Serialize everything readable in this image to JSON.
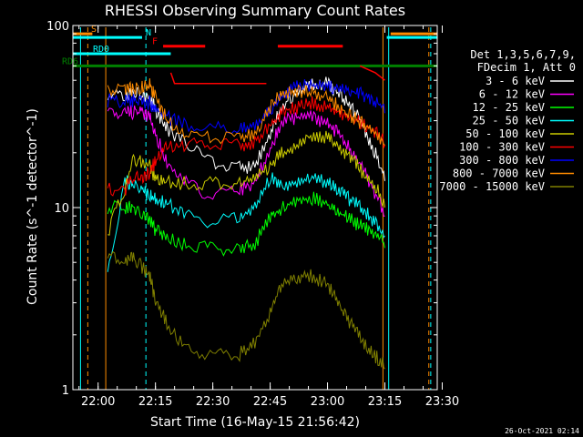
{
  "chart_data": {
    "type": "line",
    "title": "RHESSI Observing Summary Count Rates",
    "xlabel": "Start Time (16-May-15 21:56:42)",
    "ylabel": "Count Rate (s^-1 detector^-1)",
    "yscale": "log",
    "ylim": [
      1,
      100
    ],
    "xlim_minutes": [
      -3.3,
      92
    ],
    "x_ticks": [
      "22:00",
      "22:15",
      "22:30",
      "22:45",
      "23:00",
      "23:15",
      "23:30"
    ],
    "x_tick_minutes": [
      3.3,
      18.3,
      33.3,
      48.3,
      63.3,
      78.3,
      93.3
    ],
    "y_ticks": [
      "1",
      "10",
      "100"
    ],
    "y_tick_values": [
      1,
      10,
      100
    ],
    "legend_header": [
      "Det 1,3,5,6,7,9,",
      "FDecim 1, Att 0"
    ],
    "legend_position": "right",
    "grid": false,
    "timestamp": "26-Oct-2021 02:14",
    "flags": [
      {
        "label": "S",
        "color": "#ff8c00",
        "segments": [
          [
            -3.3,
            1.8
          ],
          [
            79.8,
            92
          ]
        ],
        "level": 90
      },
      {
        "label": "N",
        "color": "#00ffff",
        "segments": [
          [
            -3.3,
            14.8
          ],
          [
            78.8,
            92
          ]
        ],
        "level": 86
      },
      {
        "label": "F",
        "color": "#ff0000",
        "segments": [
          [
            20.3,
            31.3
          ],
          [
            50.3,
            67.3
          ]
        ],
        "level": 77
      },
      {
        "label": "RD0",
        "color": "#00ffff",
        "segments": [
          [
            -3.3,
            22.3
          ]
        ],
        "level": 70
      },
      {
        "label": "RD6",
        "color": "#008000",
        "segments": [
          [
            -3.3,
            92
          ]
        ],
        "level": 60
      }
    ],
    "vertical_markers": [
      {
        "color": "#ff8c00",
        "dashed": false,
        "minutes": [
          5.3,
          77.8
        ]
      },
      {
        "color": "#ff8c00",
        "dashed": true,
        "minutes": [
          0.6,
          89.8
        ]
      },
      {
        "color": "#00ffff",
        "dashed": false,
        "minutes": [
          -1.3,
          79.3
        ]
      },
      {
        "color": "#00ffff",
        "dashed": true,
        "minutes": [
          15.8,
          90.3
        ]
      }
    ],
    "x_minutes": [
      5.8,
      10.3,
      12.3,
      14.8,
      16.8,
      18.3,
      21.3,
      26.3,
      33.3,
      40.3,
      44.3,
      48.3,
      51.3,
      55.3,
      59.3,
      63.3,
      66.3,
      69.3,
      72.3,
      75.3,
      78.3
    ],
    "series": [
      {
        "name": "3 - 6 keV",
        "color": "#ffffff",
        "values": [
          40,
          40,
          40,
          40,
          38,
          33,
          26,
          21,
          17,
          16,
          16,
          24,
          34,
          42,
          45,
          46,
          40,
          34,
          28,
          20,
          14
        ]
      },
      {
        "name": "6 - 12 keV",
        "color": "#ff00ff",
        "values": [
          32,
          32,
          32,
          32,
          30,
          24,
          17,
          13,
          11,
          12,
          13,
          20,
          28,
          30,
          30,
          28,
          24,
          20,
          16,
          12,
          9
        ]
      },
      {
        "name": "12 - 25 keV",
        "color": "#00ff00",
        "values": [
          9.5,
          9.5,
          9.5,
          9,
          8,
          7.2,
          6.5,
          6,
          5.7,
          5.7,
          6,
          8.5,
          9.5,
          10.5,
          10.8,
          10,
          9,
          8.2,
          7.5,
          7,
          6
        ]
      },
      {
        "name": "25 - 50 keV",
        "color": "#00ffff",
        "values": [
          4,
          13,
          13,
          12,
          11,
          10.5,
          10,
          8.5,
          8,
          8.5,
          9.5,
          14,
          12.5,
          13,
          14,
          13,
          12,
          10.5,
          9.5,
          8,
          7
        ]
      },
      {
        "name": "50 - 100 keV",
        "color": "#cccc00",
        "values": [
          7,
          12,
          17,
          17,
          16,
          14,
          13,
          13,
          13,
          13,
          14,
          16,
          19,
          21,
          24,
          23,
          20,
          18,
          15,
          13,
          10
        ]
      },
      {
        "name": "100 - 300 keV",
        "color": "#ff0000",
        "values": [
          12,
          12,
          14,
          14,
          15,
          17,
          21,
          21,
          21,
          21,
          22,
          27,
          32,
          34,
          36,
          34,
          32,
          30,
          28,
          25,
          22
        ]
      },
      {
        "name": "300 - 800 keV",
        "color": "#0000ff",
        "values": [
          37,
          37,
          37,
          36,
          36,
          33,
          30,
          27,
          26,
          26,
          27,
          33,
          40,
          44,
          45,
          44,
          44,
          42,
          40,
          37,
          33
        ]
      },
      {
        "name": "800 - 7000 keV",
        "color": "#ff8c00",
        "values": [
          43,
          43,
          43,
          44,
          45,
          38,
          29,
          24,
          23,
          23,
          24,
          34,
          40,
          41,
          41,
          38,
          34,
          30,
          28,
          25,
          22
        ]
      },
      {
        "name": "7000 - 15000 keV",
        "color": "#808000",
        "values": [
          5,
          5,
          5,
          4.5,
          4,
          3,
          2.2,
          1.6,
          1.5,
          1.5,
          1.7,
          2.5,
          3.6,
          4,
          4,
          3.6,
          2.8,
          2.2,
          1.8,
          1.5,
          1.3
        ]
      }
    ],
    "extra_segments": [
      {
        "color": "#ff0000",
        "x": [
          22.3,
          23.3,
          47.3
        ],
        "values": [
          55,
          48,
          48
        ]
      },
      {
        "color": "#ff0000",
        "x": [
          71.8,
          75.8,
          78.3
        ],
        "values": [
          60,
          55,
          50
        ]
      }
    ]
  }
}
